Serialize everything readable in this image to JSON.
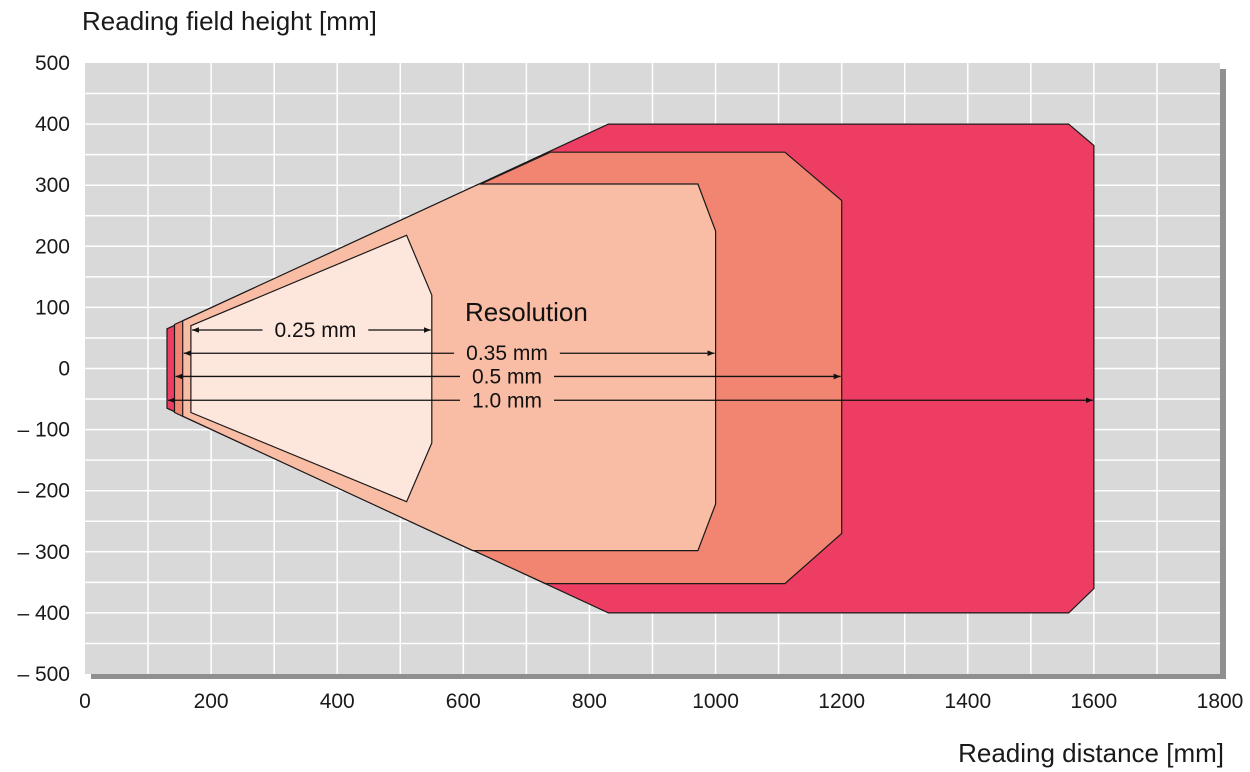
{
  "chart_data": {
    "type": "area",
    "ylabel": "Reading field height [mm]",
    "xlabel": "Reading distance  [mm]",
    "xlim": [
      0,
      1800
    ],
    "ylim": [
      -500,
      500
    ],
    "x_ticks": [
      {
        "value": 0,
        "label": "0"
      },
      {
        "value": 200,
        "label": "200"
      },
      {
        "value": 400,
        "label": "400"
      },
      {
        "value": 600,
        "label": "600"
      },
      {
        "value": 800,
        "label": "800"
      },
      {
        "value": 1000,
        "label": "1000"
      },
      {
        "value": 1200,
        "label": "1200"
      },
      {
        "value": 1400,
        "label": "1400"
      },
      {
        "value": 1600,
        "label": "1600"
      },
      {
        "value": 1800,
        "label": "1800"
      }
    ],
    "y_ticks": [
      {
        "value": 500,
        "label": "500"
      },
      {
        "value": 400,
        "label": "400"
      },
      {
        "value": 300,
        "label": "300"
      },
      {
        "value": 200,
        "label": "200"
      },
      {
        "value": 100,
        "label": "100"
      },
      {
        "value": 0,
        "label": "0"
      },
      {
        "value": -100,
        "label": "– 100"
      },
      {
        "value": -200,
        "label": "– 200"
      },
      {
        "value": -300,
        "label": "– 300"
      },
      {
        "value": -400,
        "label": "– 400"
      },
      {
        "value": -500,
        "label": "– 500"
      }
    ],
    "grid": true,
    "legend_title": "Resolution",
    "series": [
      {
        "name": "1.0 mm",
        "color": "#ee3d62",
        "arrow_y": -52,
        "arrow_x": [
          130,
          1600
        ],
        "polygon": [
          [
            130,
            65
          ],
          [
            830,
            400
          ],
          [
            1560,
            400
          ],
          [
            1600,
            365
          ],
          [
            1600,
            -360
          ],
          [
            1560,
            -400
          ],
          [
            830,
            -400
          ],
          [
            130,
            -65
          ]
        ]
      },
      {
        "name": "0.5 mm",
        "color": "#f28572",
        "arrow_y": -13,
        "arrow_x": [
          142,
          1200
        ],
        "polygon": [
          [
            142,
            72
          ],
          [
            738,
            354
          ],
          [
            1110,
            354
          ],
          [
            1200,
            275
          ],
          [
            1200,
            -270
          ],
          [
            1110,
            -352
          ],
          [
            730,
            -352
          ],
          [
            142,
            -72
          ]
        ]
      },
      {
        "name": "0.35 mm",
        "color": "#f9bca4",
        "arrow_y": 25,
        "arrow_x": [
          155,
          1000
        ],
        "polygon": [
          [
            155,
            78
          ],
          [
            625,
            302
          ],
          [
            972,
            302
          ],
          [
            1000,
            225
          ],
          [
            1000,
            -222
          ],
          [
            972,
            -298
          ],
          [
            615,
            -298
          ],
          [
            155,
            -78
          ]
        ]
      },
      {
        "name": "0.25 mm",
        "color": "#fde6dc",
        "arrow_y": 63,
        "arrow_x": [
          168,
          550
        ],
        "polygon": [
          [
            168,
            70
          ],
          [
            510,
            218
          ],
          [
            550,
            120
          ],
          [
            550,
            -122
          ],
          [
            510,
            -218
          ],
          [
            168,
            -72
          ]
        ]
      }
    ]
  }
}
